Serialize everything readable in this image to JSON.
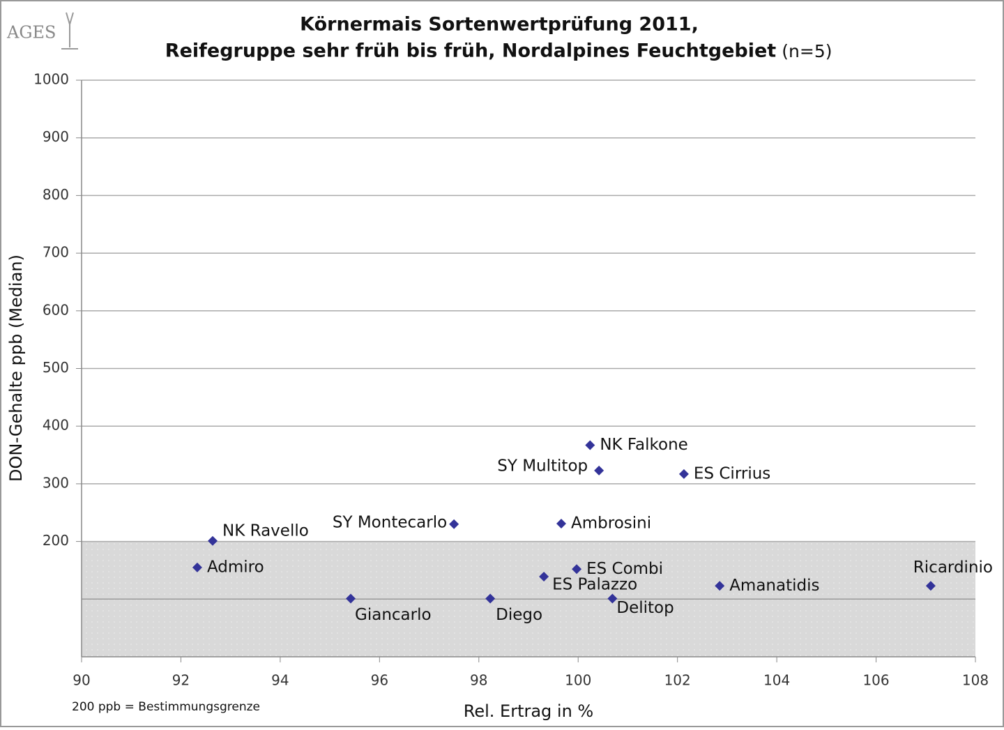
{
  "chart_data": {
    "type": "scatter",
    "logo": "AGES",
    "title": "Körnermais Sortenwertprüfung 2011,",
    "subtitle": "Reifegruppe sehr früh bis früh, Nordalpines Feuchtgebiet",
    "subtitle_note": "(n=5)",
    "x_label": "Rel. Ertrag in %",
    "y_label": "DON-Gehalte ppb (Median)",
    "footnote": "200 ppb = Bestimmungsgrenze",
    "threshold": 200,
    "color": "#333399",
    "labels": [
      "NK Falkone",
      "SY Multitop",
      "ES Cirrius",
      "SY Montecarlo",
      "Ambrosini",
      "NK Ravello",
      "Admiro",
      "ES Combi",
      "ES Palazzo",
      "Amanatidis",
      "Ricardinio",
      "Giancarlo",
      "Diego",
      "Delitop"
    ],
    "x": [
      100.24,
      100.42,
      102.13,
      97.5,
      99.66,
      92.64,
      92.33,
      99.97,
      99.31,
      102.85,
      107.1,
      95.42,
      98.23,
      100.69
    ],
    "values": [
      367,
      323,
      317,
      230,
      231,
      201,
      155,
      152,
      139,
      123,
      123,
      101,
      101,
      101
    ],
    "xlim": [
      90,
      108
    ],
    "xticks": [
      90,
      92,
      94,
      96,
      98,
      100,
      102,
      104,
      106,
      108
    ],
    "ylim": [
      0,
      1000
    ],
    "yticks": [
      200,
      300,
      400,
      500,
      600,
      700,
      800,
      900,
      1000
    ],
    "grid": true
  }
}
